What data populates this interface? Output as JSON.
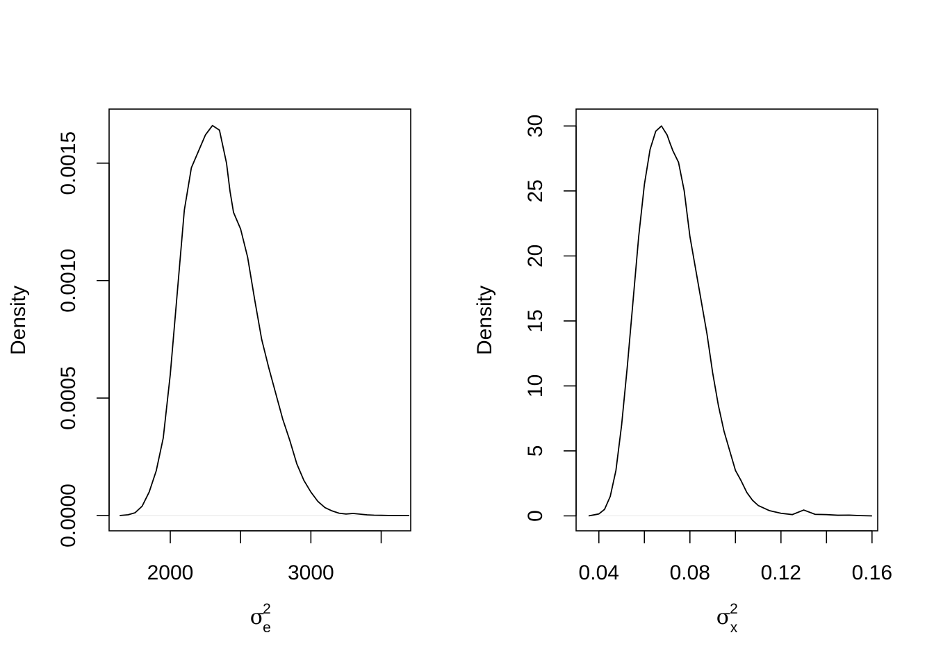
{
  "chart_data": [
    {
      "type": "line",
      "xlabel": {
        "symbol": "σ",
        "superscript": "2",
        "subscript": "e"
      },
      "ylabel": "Density",
      "xlim": [
        1565,
        3710
      ],
      "ylim": [
        -6.5e-05,
        0.00173
      ],
      "x_ticks": [
        {
          "value": 2000,
          "label": "2000"
        },
        {
          "value": 2500,
          "label": ""
        },
        {
          "value": 3000,
          "label": "3000"
        },
        {
          "value": 3500,
          "label": ""
        }
      ],
      "y_ticks": [
        {
          "value": 0.0,
          "label": "0.0000"
        },
        {
          "value": 0.0005,
          "label": "0.0005"
        },
        {
          "value": 0.001,
          "label": "0.0010"
        },
        {
          "value": 0.0015,
          "label": "0.0015"
        }
      ],
      "series": [
        {
          "x": [
            1640,
            1700,
            1750,
            1800,
            1850,
            1900,
            1950,
            2000,
            2050,
            2100,
            2150,
            2200,
            2250,
            2300,
            2350,
            2400,
            2425,
            2450,
            2500,
            2550,
            2600,
            2650,
            2700,
            2750,
            2800,
            2850,
            2900,
            2950,
            3000,
            3050,
            3100,
            3150,
            3200,
            3250,
            3300,
            3350,
            3400,
            3450,
            3500,
            3550,
            3600,
            3650,
            3700
          ],
          "y": [
            0.0,
            3.5e-06,
            1.2e-05,
            4e-05,
            0.0001,
            0.00019,
            0.00033,
            0.0006,
            0.00095,
            0.0013,
            0.00148,
            0.00155,
            0.00162,
            0.00166,
            0.00164,
            0.0015,
            0.00138,
            0.00129,
            0.00122,
            0.0011,
            0.00092,
            0.00075,
            0.00063,
            0.00052,
            0.00041,
            0.00032,
            0.00022,
            0.00015,
            0.0001,
            6e-05,
            3.4e-05,
            2e-05,
            1e-05,
            6.5e-06,
            9e-06,
            6e-06,
            3e-06,
            1.5e-06,
            1e-06,
            5e-07,
            3e-07,
            1e-07,
            0.0
          ]
        }
      ]
    },
    {
      "type": "line",
      "xlabel": {
        "symbol": "σ",
        "superscript": "2",
        "subscript": "x"
      },
      "ylabel": "Density",
      "xlim": [
        0.03,
        0.1625
      ],
      "ylim": [
        -1.15,
        31.3
      ],
      "x_ticks": [
        {
          "value": 0.04,
          "label": "0.04"
        },
        {
          "value": 0.06,
          "label": ""
        },
        {
          "value": 0.08,
          "label": "0.08"
        },
        {
          "value": 0.1,
          "label": ""
        },
        {
          "value": 0.12,
          "label": "0.12"
        },
        {
          "value": 0.14,
          "label": ""
        },
        {
          "value": 0.16,
          "label": "0.16"
        }
      ],
      "y_ticks": [
        {
          "value": 0,
          "label": "0"
        },
        {
          "value": 5,
          "label": "5"
        },
        {
          "value": 10,
          "label": "10"
        },
        {
          "value": 15,
          "label": "15"
        },
        {
          "value": 20,
          "label": "20"
        },
        {
          "value": 25,
          "label": "25"
        },
        {
          "value": 30,
          "label": "30"
        }
      ],
      "series": [
        {
          "x": [
            0.0355,
            0.04,
            0.0425,
            0.045,
            0.0475,
            0.05,
            0.0525,
            0.055,
            0.0575,
            0.06,
            0.0625,
            0.065,
            0.0675,
            0.07,
            0.0712,
            0.0725,
            0.075,
            0.0775,
            0.08,
            0.0825,
            0.085,
            0.0875,
            0.09,
            0.0925,
            0.095,
            0.0975,
            0.1,
            0.1025,
            0.105,
            0.1075,
            0.11,
            0.1125,
            0.115,
            0.1175,
            0.12,
            0.1225,
            0.125,
            0.13,
            0.135,
            0.14,
            0.145,
            0.15,
            0.155,
            0.16
          ],
          "y": [
            0.0,
            0.15,
            0.5,
            1.5,
            3.5,
            7.0,
            11.5,
            16.5,
            21.5,
            25.5,
            28.2,
            29.6,
            30.0,
            29.3,
            28.7,
            28.1,
            27.2,
            25.0,
            21.5,
            19.0,
            16.5,
            14.0,
            11.0,
            8.5,
            6.5,
            5.0,
            3.5,
            2.7,
            1.8,
            1.2,
            0.8,
            0.6,
            0.4,
            0.3,
            0.2,
            0.15,
            0.1,
            0.45,
            0.12,
            0.1,
            0.05,
            0.06,
            0.02,
            0.0
          ]
        }
      ]
    }
  ]
}
